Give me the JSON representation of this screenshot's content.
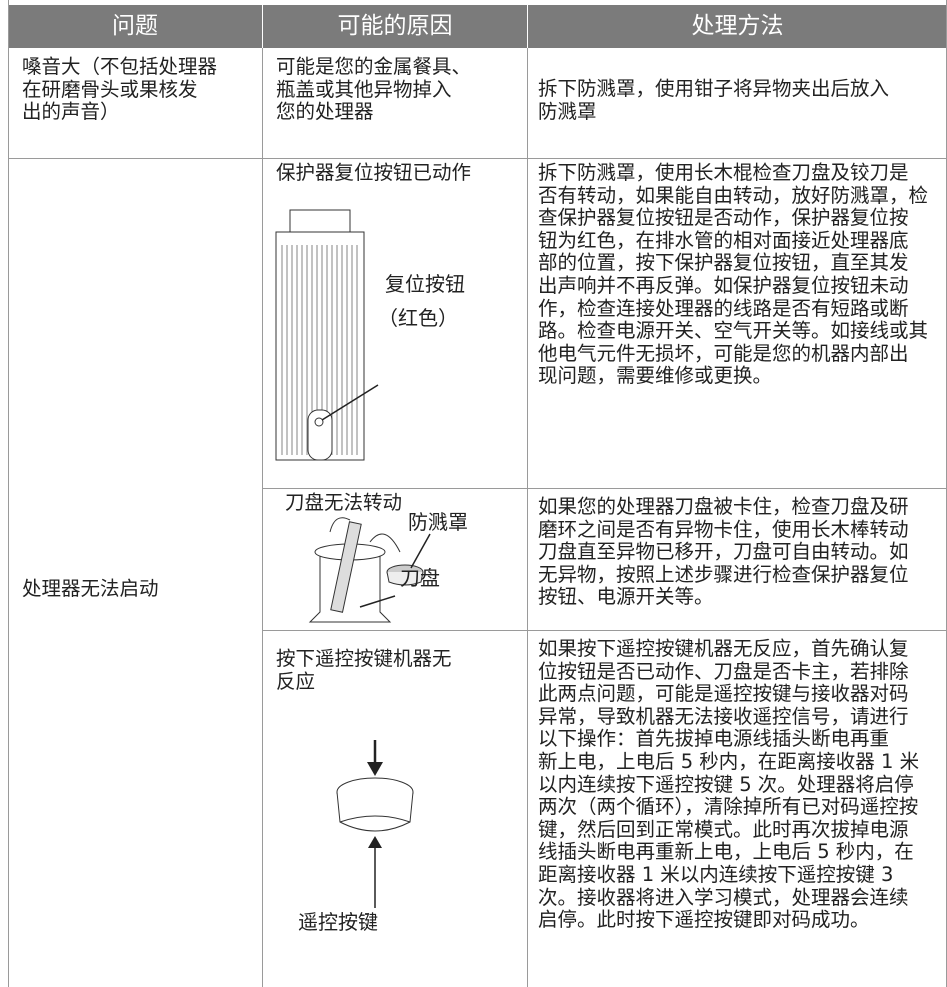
{
  "table": {
    "headers": [
      "问题",
      "可能的原因",
      "处理方法"
    ],
    "rows": [
      {
        "problem": [
          "嗓音大（不包括处理器",
          "在研磨骨头或果核发",
          "出的声音）"
        ],
        "cause": [
          "可能是您的金属餐具、",
          "瓶盖或其他异物掉入",
          "您的处理器"
        ],
        "solution": [
          "拆下防溅罩，使用钳子将异物夹出后放入",
          "防溅罩"
        ]
      },
      {
        "problem": [
          "处理器无法启动"
        ],
        "items": [
          {
            "cause": [
              "保护器复位按钮已动作"
            ],
            "figure_labels": [
              "复位按钮",
              "（红色）"
            ],
            "solution": [
              "拆下防溅罩，使用长木棍检查刀盘及铰刀是",
              "否有转动，如果能自由转动，放好防溅罩，检",
              "查保护器复位按钮是否动作，保护器复位按",
              "钮为红色，在排水管的相对面接近处理器底",
              "部的位置，按下保护器复位按钮，直至其发",
              "出声响并不再反弹。如保护器复位按钮未动",
              "作，检查连接处理器的线路是否有短路或断",
              "路。检查电源开关、空气开关等。如接线或其",
              "他电气元件无损坏，可能是您的机器内部出",
              "现问题，需要维修或更换。"
            ]
          },
          {
            "cause": [
              "刀盘无法转动"
            ],
            "figure_labels": [
              "防溅罩",
              "刀盘"
            ],
            "solution": [
              "如果您的处理器刀盘被卡住，检查刀盘及研",
              "磨环之间是否有异物卡住，使用长木棒转动",
              "刀盘直至异物已移开，刀盘可自由转动。如",
              "无异物，按照上述步骤进行检查保护器复位",
              "按钮、电源开关等。"
            ]
          },
          {
            "cause": [
              "按下遥控按键机器无",
              "反应"
            ],
            "figure_labels": [
              "遥控按键"
            ],
            "solution": [
              "如果按下遥控按键机器无反应，首先确认复",
              "位按钮是否已动作、刀盘是否卡主，若排除",
              "此两点问题，可能是遥控按键与接收器对码",
              "异常，导致机器无法接收遥控信号，请进行",
              "以下操作：首先拔掉电源线插头断电再重",
              "新上电，上电后 5 秒内，在距离接收器 1 米",
              "以内连续按下遥控按键 5 次。处理器将启停",
              "两次（两个循环），清除掉所有已对码遥控按",
              "键，然后回到正常模式。此时再次拔掉电源",
              "线插头断电再重新上电，上电后 5 秒内，在",
              "距离接收器 1 米以内连续按下遥控按键 3",
              "次。接收器将进入学习模式，处理器会连续",
              "启停。此时按下遥控按键即对码成功。"
            ]
          }
        ]
      }
    ]
  }
}
